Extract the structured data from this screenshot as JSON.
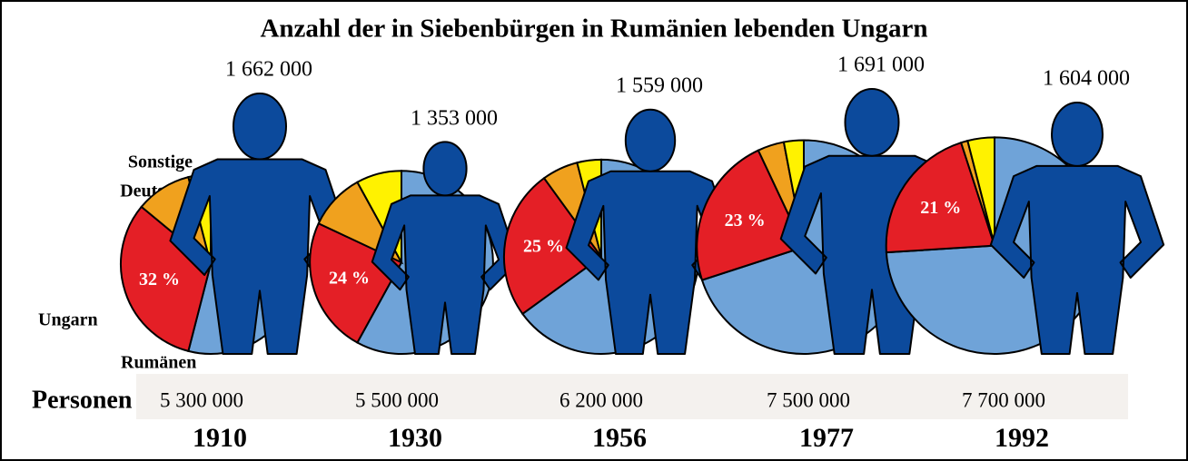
{
  "chart_data": {
    "type": "pie",
    "title": "Anzahl der in Siebenbürgen in Rumänien lebenden Ungarn",
    "categories": [
      "Rumänen",
      "Ungarn",
      "Deutsche",
      "Sonstige"
    ],
    "colors": [
      "#6fa3d8",
      "#e41f26",
      "#f0a11e",
      "#fff200"
    ],
    "row_label": "Personen",
    "pies": [
      {
        "year": "1910",
        "total": 5300000,
        "total_label": "5 300 000",
        "hungarians": 1662000,
        "hungarians_label": "1 662 000",
        "values": [
          54,
          32,
          10,
          4
        ],
        "value_labels": [
          null,
          "32 %",
          null,
          null
        ]
      },
      {
        "year": "1930",
        "total": 5500000,
        "total_label": "5 500 000",
        "hungarians": 1353000,
        "hungarians_label": "1 353 000",
        "values": [
          58,
          24,
          10,
          8
        ],
        "value_labels": [
          null,
          "24 %",
          null,
          null
        ]
      },
      {
        "year": "1956",
        "total": 6200000,
        "total_label": "6 200 000",
        "hungarians": 1559000,
        "hungarians_label": "1 559 000",
        "values": [
          65,
          25,
          6,
          4
        ],
        "value_labels": [
          null,
          "25 %",
          null,
          null
        ]
      },
      {
        "year": "1977",
        "total": 7500000,
        "total_label": "7 500 000",
        "hungarians": 1691000,
        "hungarians_label": "1 691 000",
        "values": [
          70,
          23,
          4,
          3
        ],
        "value_labels": [
          null,
          "23 %",
          null,
          null
        ]
      },
      {
        "year": "1992",
        "total": 7700000,
        "total_label": "7 700 000",
        "hungarians": 1604000,
        "hungarians_label": "1 604 000",
        "values": [
          74,
          21,
          1,
          4
        ],
        "value_labels": [
          null,
          "21 %",
          null,
          null
        ]
      }
    ]
  }
}
